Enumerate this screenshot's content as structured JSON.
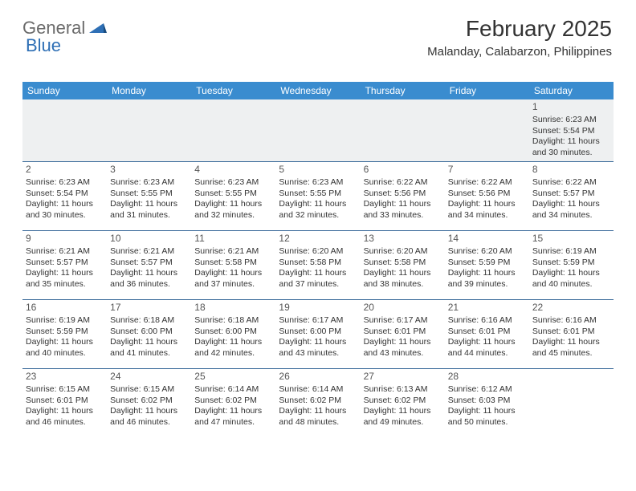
{
  "brand": {
    "part1": "General",
    "part2": "Blue"
  },
  "title": "February 2025",
  "location": "Malanday, Calabarzon, Philippines",
  "colors": {
    "header_bg": "#3a8ccf",
    "header_text": "#ffffff",
    "row_separator": "#3a6a9a",
    "first_row_bg": "#eef0f1",
    "body_text": "#333333",
    "logo_grey": "#6b6b6b",
    "logo_blue": "#2e6fb5"
  },
  "typography": {
    "title_fontsize": 28,
    "location_fontsize": 15,
    "weekday_fontsize": 12,
    "daynum_fontsize": 12,
    "cell_fontsize": 10.5
  },
  "weekdays": [
    "Sunday",
    "Monday",
    "Tuesday",
    "Wednesday",
    "Thursday",
    "Friday",
    "Saturday"
  ],
  "weeks": [
    [
      null,
      null,
      null,
      null,
      null,
      null,
      {
        "n": "1",
        "sr": "Sunrise: 6:23 AM",
        "ss": "Sunset: 5:54 PM",
        "dl": "Daylight: 11 hours and 30 minutes."
      }
    ],
    [
      {
        "n": "2",
        "sr": "Sunrise: 6:23 AM",
        "ss": "Sunset: 5:54 PM",
        "dl": "Daylight: 11 hours and 30 minutes."
      },
      {
        "n": "3",
        "sr": "Sunrise: 6:23 AM",
        "ss": "Sunset: 5:55 PM",
        "dl": "Daylight: 11 hours and 31 minutes."
      },
      {
        "n": "4",
        "sr": "Sunrise: 6:23 AM",
        "ss": "Sunset: 5:55 PM",
        "dl": "Daylight: 11 hours and 32 minutes."
      },
      {
        "n": "5",
        "sr": "Sunrise: 6:23 AM",
        "ss": "Sunset: 5:55 PM",
        "dl": "Daylight: 11 hours and 32 minutes."
      },
      {
        "n": "6",
        "sr": "Sunrise: 6:22 AM",
        "ss": "Sunset: 5:56 PM",
        "dl": "Daylight: 11 hours and 33 minutes."
      },
      {
        "n": "7",
        "sr": "Sunrise: 6:22 AM",
        "ss": "Sunset: 5:56 PM",
        "dl": "Daylight: 11 hours and 34 minutes."
      },
      {
        "n": "8",
        "sr": "Sunrise: 6:22 AM",
        "ss": "Sunset: 5:57 PM",
        "dl": "Daylight: 11 hours and 34 minutes."
      }
    ],
    [
      {
        "n": "9",
        "sr": "Sunrise: 6:21 AM",
        "ss": "Sunset: 5:57 PM",
        "dl": "Daylight: 11 hours and 35 minutes."
      },
      {
        "n": "10",
        "sr": "Sunrise: 6:21 AM",
        "ss": "Sunset: 5:57 PM",
        "dl": "Daylight: 11 hours and 36 minutes."
      },
      {
        "n": "11",
        "sr": "Sunrise: 6:21 AM",
        "ss": "Sunset: 5:58 PM",
        "dl": "Daylight: 11 hours and 37 minutes."
      },
      {
        "n": "12",
        "sr": "Sunrise: 6:20 AM",
        "ss": "Sunset: 5:58 PM",
        "dl": "Daylight: 11 hours and 37 minutes."
      },
      {
        "n": "13",
        "sr": "Sunrise: 6:20 AM",
        "ss": "Sunset: 5:58 PM",
        "dl": "Daylight: 11 hours and 38 minutes."
      },
      {
        "n": "14",
        "sr": "Sunrise: 6:20 AM",
        "ss": "Sunset: 5:59 PM",
        "dl": "Daylight: 11 hours and 39 minutes."
      },
      {
        "n": "15",
        "sr": "Sunrise: 6:19 AM",
        "ss": "Sunset: 5:59 PM",
        "dl": "Daylight: 11 hours and 40 minutes."
      }
    ],
    [
      {
        "n": "16",
        "sr": "Sunrise: 6:19 AM",
        "ss": "Sunset: 5:59 PM",
        "dl": "Daylight: 11 hours and 40 minutes."
      },
      {
        "n": "17",
        "sr": "Sunrise: 6:18 AM",
        "ss": "Sunset: 6:00 PM",
        "dl": "Daylight: 11 hours and 41 minutes."
      },
      {
        "n": "18",
        "sr": "Sunrise: 6:18 AM",
        "ss": "Sunset: 6:00 PM",
        "dl": "Daylight: 11 hours and 42 minutes."
      },
      {
        "n": "19",
        "sr": "Sunrise: 6:17 AM",
        "ss": "Sunset: 6:00 PM",
        "dl": "Daylight: 11 hours and 43 minutes."
      },
      {
        "n": "20",
        "sr": "Sunrise: 6:17 AM",
        "ss": "Sunset: 6:01 PM",
        "dl": "Daylight: 11 hours and 43 minutes."
      },
      {
        "n": "21",
        "sr": "Sunrise: 6:16 AM",
        "ss": "Sunset: 6:01 PM",
        "dl": "Daylight: 11 hours and 44 minutes."
      },
      {
        "n": "22",
        "sr": "Sunrise: 6:16 AM",
        "ss": "Sunset: 6:01 PM",
        "dl": "Daylight: 11 hours and 45 minutes."
      }
    ],
    [
      {
        "n": "23",
        "sr": "Sunrise: 6:15 AM",
        "ss": "Sunset: 6:01 PM",
        "dl": "Daylight: 11 hours and 46 minutes."
      },
      {
        "n": "24",
        "sr": "Sunrise: 6:15 AM",
        "ss": "Sunset: 6:02 PM",
        "dl": "Daylight: 11 hours and 46 minutes."
      },
      {
        "n": "25",
        "sr": "Sunrise: 6:14 AM",
        "ss": "Sunset: 6:02 PM",
        "dl": "Daylight: 11 hours and 47 minutes."
      },
      {
        "n": "26",
        "sr": "Sunrise: 6:14 AM",
        "ss": "Sunset: 6:02 PM",
        "dl": "Daylight: 11 hours and 48 minutes."
      },
      {
        "n": "27",
        "sr": "Sunrise: 6:13 AM",
        "ss": "Sunset: 6:02 PM",
        "dl": "Daylight: 11 hours and 49 minutes."
      },
      {
        "n": "28",
        "sr": "Sunrise: 6:12 AM",
        "ss": "Sunset: 6:03 PM",
        "dl": "Daylight: 11 hours and 50 minutes."
      },
      null
    ]
  ]
}
